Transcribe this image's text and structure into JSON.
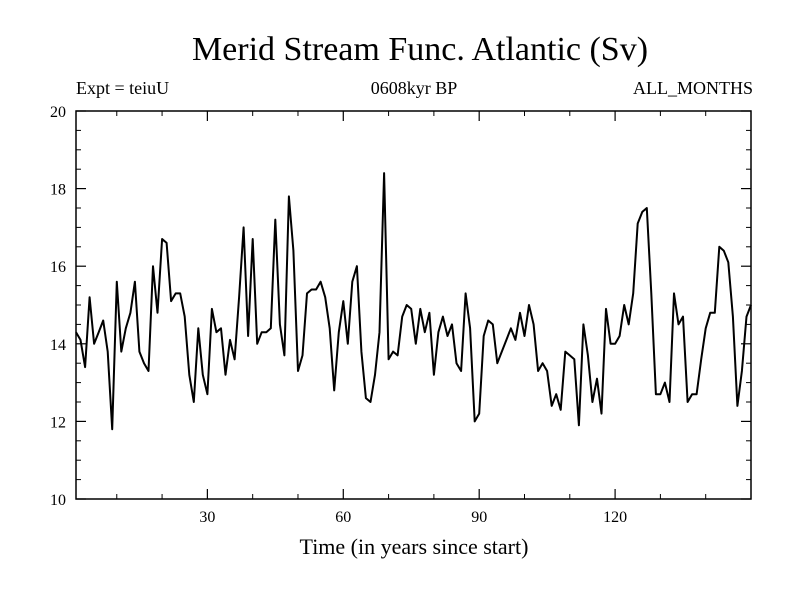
{
  "chart_data": {
    "type": "line",
    "title": "Merid Stream Func. Atlantic (Sv)",
    "subtitle_left": "Expt = teiuU",
    "subtitle_center": "0608kyr BP",
    "subtitle_right": "ALL_MONTHS",
    "xlabel": "Time (in years since start)",
    "ylabel": "",
    "xlim": [
      1,
      150
    ],
    "ylim": [
      10,
      20
    ],
    "xticks_major": [
      30,
      60,
      90,
      120
    ],
    "xticks_minor": [
      10,
      20,
      40,
      50,
      70,
      80,
      100,
      110,
      130,
      140
    ],
    "yticks_major": [
      10,
      12,
      14,
      16,
      18,
      20
    ],
    "grid": false,
    "series": [
      {
        "name": "Merid Stream Func. Atlantic",
        "color": "#000000",
        "x": [
          1,
          2,
          3,
          4,
          5,
          6,
          7,
          8,
          9,
          10,
          11,
          12,
          13,
          14,
          15,
          16,
          17,
          18,
          19,
          20,
          21,
          22,
          23,
          24,
          25,
          26,
          27,
          28,
          29,
          30,
          31,
          32,
          33,
          34,
          35,
          36,
          37,
          38,
          39,
          40,
          41,
          42,
          43,
          44,
          45,
          46,
          47,
          48,
          49,
          50,
          51,
          52,
          53,
          54,
          55,
          56,
          57,
          58,
          59,
          60,
          61,
          62,
          63,
          64,
          65,
          66,
          67,
          68,
          69,
          70,
          71,
          72,
          73,
          74,
          75,
          76,
          77,
          78,
          79,
          80,
          81,
          82,
          83,
          84,
          85,
          86,
          87,
          88,
          89,
          90,
          91,
          92,
          93,
          94,
          95,
          96,
          97,
          98,
          99,
          100,
          101,
          102,
          103,
          104,
          105,
          106,
          107,
          108,
          109,
          110,
          111,
          112,
          113,
          114,
          115,
          116,
          117,
          118,
          119,
          120,
          121,
          122,
          123,
          124,
          125,
          126,
          127,
          128,
          129,
          130,
          131,
          132,
          133,
          134,
          135,
          136,
          137,
          138,
          139,
          140,
          141,
          142,
          143,
          144,
          145,
          146,
          147,
          148,
          149,
          150
        ],
        "values": [
          14.3,
          14.1,
          13.4,
          15.2,
          14.0,
          14.3,
          14.6,
          13.8,
          11.8,
          15.6,
          13.8,
          14.4,
          14.8,
          15.6,
          13.8,
          13.5,
          13.3,
          16.0,
          14.8,
          16.7,
          16.6,
          15.1,
          15.3,
          15.3,
          14.7,
          13.2,
          12.5,
          14.4,
          13.2,
          12.7,
          14.9,
          14.3,
          14.4,
          13.2,
          14.1,
          13.6,
          15.2,
          17.0,
          14.2,
          16.7,
          14.0,
          14.3,
          14.3,
          14.4,
          17.2,
          14.5,
          13.7,
          17.8,
          16.4,
          13.3,
          13.7,
          15.3,
          15.4,
          15.4,
          15.6,
          15.2,
          14.4,
          12.8,
          14.3,
          15.1,
          14.0,
          15.6,
          16.0,
          13.8,
          12.6,
          12.5,
          13.2,
          14.3,
          18.4,
          13.6,
          13.8,
          13.7,
          14.7,
          15.0,
          14.9,
          14.0,
          14.9,
          14.3,
          14.8,
          13.2,
          14.3,
          14.7,
          14.2,
          14.5,
          13.5,
          13.3,
          15.3,
          14.4,
          12.0,
          12.2,
          14.2,
          14.6,
          14.5,
          13.5,
          13.8,
          14.1,
          14.4,
          14.1,
          14.8,
          14.2,
          15.0,
          14.5,
          13.3,
          13.5,
          13.3,
          12.4,
          12.7,
          12.3,
          13.8,
          13.7,
          13.6,
          11.9,
          14.5,
          13.7,
          12.5,
          13.1,
          12.2,
          14.9,
          14.0,
          14.0,
          14.2,
          15.0,
          14.5,
          15.3,
          17.1,
          17.4,
          17.5,
          15.3,
          12.7,
          12.7,
          13.0,
          12.5,
          15.3,
          14.5,
          14.7,
          12.5,
          12.7,
          12.7,
          13.6,
          14.4,
          14.8,
          14.8,
          16.5,
          16.4,
          16.1,
          14.7,
          12.4,
          13.3,
          14.7,
          15.0
        ]
      }
    ]
  }
}
